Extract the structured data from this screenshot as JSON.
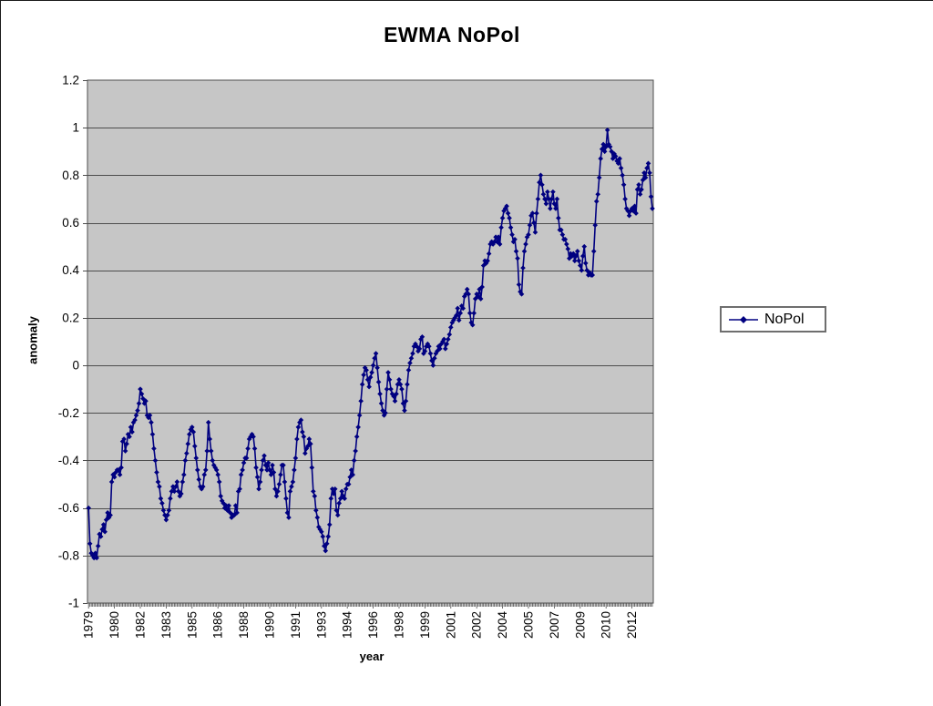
{
  "chart": {
    "title": "EWMA NoPol",
    "y_axis_title": "anomaly",
    "x_axis_title": "year",
    "legend_label": "NoPol"
  },
  "chart_data": {
    "type": "line",
    "title": "EWMA NoPol",
    "xlabel": "year",
    "ylabel": "anomaly",
    "legend_position": "right",
    "grid": true,
    "grid_color": "#4d4d4d",
    "plot_bg": "#c6c6c6",
    "ylim": [
      -1,
      1.2
    ],
    "ytick_step": 0.2,
    "ytick_labels": [
      "1.2",
      "1",
      "0.8",
      "0.6",
      "0.4",
      "0.2",
      "0",
      "-0.2",
      "-0.4",
      "-0.6",
      "-0.8",
      "-1"
    ],
    "x_start_year": 1979,
    "points_per_year": 12,
    "xtick_every": 19,
    "xtick_labels": [
      "1979",
      "1980",
      "1982",
      "1983",
      "1985",
      "1986",
      "1988",
      "1990",
      "1991",
      "1993",
      "1994",
      "1996",
      "1998",
      "1999",
      "2001",
      "2002",
      "2004",
      "2005",
      "2007",
      "2009",
      "2010",
      "2012"
    ],
    "series": [
      {
        "name": "NoPol",
        "color": "#000080",
        "marker": "diamond",
        "values": [
          -0.6,
          -0.75,
          -0.79,
          -0.8,
          -0.81,
          -0.79,
          -0.81,
          -0.76,
          -0.71,
          -0.72,
          -0.69,
          -0.67,
          -0.7,
          -0.65,
          -0.62,
          -0.64,
          -0.63,
          -0.49,
          -0.46,
          -0.47,
          -0.45,
          -0.44,
          -0.44,
          -0.46,
          -0.43,
          -0.32,
          -0.31,
          -0.36,
          -0.33,
          -0.29,
          -0.3,
          -0.26,
          -0.28,
          -0.24,
          -0.23,
          -0.21,
          -0.19,
          -0.16,
          -0.1,
          -0.12,
          -0.14,
          -0.16,
          -0.15,
          -0.21,
          -0.22,
          -0.21,
          -0.24,
          -0.29,
          -0.35,
          -0.4,
          -0.45,
          -0.49,
          -0.51,
          -0.56,
          -0.58,
          -0.61,
          -0.63,
          -0.65,
          -0.63,
          -0.61,
          -0.56,
          -0.53,
          -0.51,
          -0.53,
          -0.51,
          -0.49,
          -0.53,
          -0.55,
          -0.54,
          -0.49,
          -0.46,
          -0.4,
          -0.37,
          -0.33,
          -0.29,
          -0.27,
          -0.26,
          -0.28,
          -0.34,
          -0.39,
          -0.44,
          -0.48,
          -0.51,
          -0.52,
          -0.51,
          -0.46,
          -0.44,
          -0.36,
          -0.24,
          -0.31,
          -0.36,
          -0.4,
          -0.42,
          -0.43,
          -0.44,
          -0.46,
          -0.49,
          -0.55,
          -0.57,
          -0.58,
          -0.6,
          -0.59,
          -0.61,
          -0.59,
          -0.62,
          -0.64,
          -0.63,
          -0.63,
          -0.59,
          -0.62,
          -0.53,
          -0.52,
          -0.46,
          -0.44,
          -0.41,
          -0.39,
          -0.39,
          -0.35,
          -0.31,
          -0.3,
          -0.29,
          -0.3,
          -0.35,
          -0.43,
          -0.47,
          -0.52,
          -0.49,
          -0.44,
          -0.4,
          -0.38,
          -0.42,
          -0.44,
          -0.41,
          -0.44,
          -0.46,
          -0.42,
          -0.45,
          -0.52,
          -0.55,
          -0.53,
          -0.5,
          -0.46,
          -0.42,
          -0.42,
          -0.49,
          -0.56,
          -0.62,
          -0.64,
          -0.53,
          -0.51,
          -0.49,
          -0.44,
          -0.39,
          -0.31,
          -0.26,
          -0.24,
          -0.23,
          -0.28,
          -0.3,
          -0.37,
          -0.35,
          -0.34,
          -0.31,
          -0.33,
          -0.43,
          -0.53,
          -0.55,
          -0.61,
          -0.64,
          -0.68,
          -0.69,
          -0.7,
          -0.72,
          -0.76,
          -0.78,
          -0.75,
          -0.72,
          -0.67,
          -0.56,
          -0.52,
          -0.54,
          -0.52,
          -0.61,
          -0.63,
          -0.58,
          -0.56,
          -0.53,
          -0.55,
          -0.56,
          -0.52,
          -0.5,
          -0.5,
          -0.47,
          -0.44,
          -0.46,
          -0.4,
          -0.36,
          -0.3,
          -0.26,
          -0.21,
          -0.15,
          -0.08,
          -0.04,
          -0.01,
          -0.02,
          -0.06,
          -0.09,
          -0.05,
          -0.03,
          0.0,
          0.03,
          0.05,
          -0.01,
          -0.07,
          -0.12,
          -0.16,
          -0.19,
          -0.21,
          -0.2,
          -0.1,
          -0.03,
          -0.06,
          -0.1,
          -0.12,
          -0.13,
          -0.15,
          -0.12,
          -0.08,
          -0.06,
          -0.08,
          -0.1,
          -0.16,
          -0.19,
          -0.15,
          -0.08,
          -0.02,
          0.01,
          0.03,
          0.05,
          0.08,
          0.09,
          0.08,
          0.06,
          0.07,
          0.11,
          0.12,
          0.05,
          0.06,
          0.08,
          0.09,
          0.08,
          0.05,
          0.02,
          0.0,
          0.03,
          0.05,
          0.06,
          0.08,
          0.07,
          0.09,
          0.1,
          0.11,
          0.07,
          0.09,
          0.11,
          0.13,
          0.16,
          0.18,
          0.19,
          0.2,
          0.21,
          0.24,
          0.19,
          0.22,
          0.25,
          0.24,
          0.29,
          0.3,
          0.32,
          0.3,
          0.22,
          0.18,
          0.17,
          0.22,
          0.28,
          0.3,
          0.29,
          0.32,
          0.28,
          0.33,
          0.42,
          0.44,
          0.43,
          0.44,
          0.47,
          0.51,
          0.52,
          0.51,
          0.52,
          0.54,
          0.52,
          0.54,
          0.51,
          0.58,
          0.62,
          0.65,
          0.66,
          0.67,
          0.64,
          0.62,
          0.58,
          0.55,
          0.52,
          0.53,
          0.48,
          0.45,
          0.34,
          0.31,
          0.3,
          0.41,
          0.48,
          0.51,
          0.54,
          0.55,
          0.59,
          0.63,
          0.64,
          0.6,
          0.56,
          0.64,
          0.7,
          0.77,
          0.8,
          0.76,
          0.72,
          0.7,
          0.68,
          0.73,
          0.7,
          0.66,
          0.7,
          0.73,
          0.68,
          0.66,
          0.7,
          0.62,
          0.57,
          0.57,
          0.55,
          0.53,
          0.53,
          0.51,
          0.49,
          0.45,
          0.47,
          0.46,
          0.47,
          0.44,
          0.46,
          0.48,
          0.44,
          0.42,
          0.4,
          0.46,
          0.5,
          0.43,
          0.4,
          0.38,
          0.39,
          0.38,
          0.38,
          0.48,
          0.59,
          0.69,
          0.72,
          0.79,
          0.87,
          0.91,
          0.93,
          0.9,
          0.92,
          0.99,
          0.93,
          0.92,
          0.9,
          0.87,
          0.89,
          0.88,
          0.86,
          0.85,
          0.87,
          0.83,
          0.8,
          0.76,
          0.7,
          0.66,
          0.65,
          0.63,
          0.65,
          0.66,
          0.65,
          0.67,
          0.64,
          0.74,
          0.76,
          0.72,
          0.74,
          0.78,
          0.81,
          0.79,
          0.83,
          0.85,
          0.81,
          0.71,
          0.66
        ]
      }
    ]
  }
}
